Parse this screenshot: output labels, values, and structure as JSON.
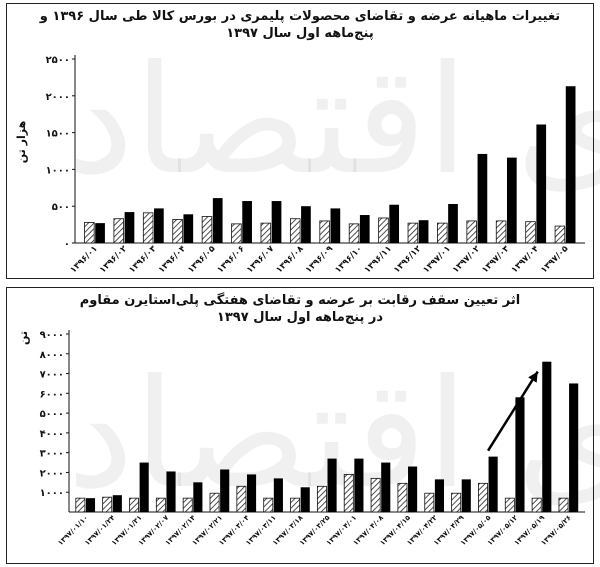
{
  "watermark": "دنیای اقتصاد",
  "chart_data": [
    {
      "type": "bar",
      "title": "تغییرات ماهیانه عرضه و تقاضای محصولات پلیمری در بورس کالا طی سال ۱۳۹۶ و",
      "subtitle": "پنج‌ماهه اول سال ۱۳۹۷",
      "ylabel": "هزار تن",
      "ylim": [
        0,
        2500
      ],
      "yticks": [
        0,
        500,
        1000,
        1500,
        2000,
        2500
      ],
      "ytick_labels": [
        "۰",
        "۵۰۰",
        "۱۰۰۰",
        "۱۵۰۰",
        "۲۰۰۰",
        "۲۵۰۰"
      ],
      "categories": [
        "۱۳۹۶/۰۱",
        "۱۳۹۶/۰۲",
        "۱۳۹۶/۰۳",
        "۱۳۹۶/۰۴",
        "۱۳۹۶/۰۵",
        "۱۳۹۶/۰۶",
        "۱۳۹۶/۰۷",
        "۱۳۹۶/۰۸",
        "۱۳۹۶/۰۹",
        "۱۳۹۶/۱۰",
        "۱۳۹۶/۱۱",
        "۱۳۹۶/۱۲",
        "۱۳۹۷/۰۱",
        "۱۳۹۷/۰۲",
        "۱۳۹۷/۰۳",
        "۱۳۹۷/۰۴",
        "۱۳۹۷/۰۵"
      ],
      "series": [
        {
          "values": [
            280,
            330,
            410,
            320,
            360,
            260,
            270,
            330,
            300,
            260,
            340,
            270,
            270,
            300,
            300,
            290,
            230
          ]
        },
        {
          "values": [
            270,
            420,
            470,
            390,
            610,
            570,
            570,
            500,
            470,
            380,
            520,
            310,
            530,
            1210,
            1160,
            1610,
            2130
          ]
        }
      ]
    },
    {
      "type": "bar",
      "title": "اثر تعیین سقف رقابت بر عرضه و تقاضای هفتگی پلی‌استایرن مقاوم",
      "subtitle": "در پنج‌ماهه اول سال ۱۳۹۷",
      "ylabel": "تن",
      "ylim": [
        0,
        9000
      ],
      "yticks": [
        1000,
        2000,
        3000,
        4000,
        5000,
        6000,
        7000,
        8000,
        9000
      ],
      "ytick_labels": [
        "۱۰۰۰",
        "۲۰۰۰",
        "۳۰۰۰",
        "۴۰۰۰",
        "۵۰۰۰",
        "۶۰۰۰",
        "۷۰۰۰",
        "۸۰۰۰",
        "۹۰۰۰"
      ],
      "categories": [
        "۱۳۹۷/۰۱/۱۰",
        "۱۳۹۷/۰۱/۲۴",
        "۱۳۹۷/۰۱/۳۱",
        "۱۳۹۷/۰۲/۰۷",
        "۱۳۹۷/۰۲/۱۴",
        "۱۳۹۷/۰۲/۲۱",
        "۱۳۹۷/۰۳/۰۴",
        "۱۳۹۷/۰۳/۱۱",
        "۱۳۹۷/۰۳/۱۸",
        "۱۳۹۷/۰۳/۲۵",
        "۱۳۹۷/۰۴/۰۱",
        "۱۳۹۷/۰۴/۰۸",
        "۱۳۹۷/۰۴/۱۵",
        "۱۳۹۷/۰۴/۲۲",
        "۱۳۹۷/۰۴/۲۹",
        "۱۳۹۷/۰۵/۰۵",
        "۱۳۹۷/۰۵/۱۲",
        "۱۳۹۷/۰۵/۱۹",
        "۱۳۹۷/۰۵/۲۶"
      ],
      "series": [
        {
          "values": [
            700,
            750,
            700,
            700,
            700,
            950,
            1300,
            700,
            700,
            1300,
            1900,
            1700,
            1450,
            950,
            950,
            1450,
            700,
            700,
            700
          ]
        },
        {
          "values": [
            700,
            850,
            2500,
            2050,
            1500,
            2150,
            1900,
            1700,
            1250,
            2700,
            2700,
            2500,
            2300,
            1650,
            1650,
            2800,
            5800,
            7600,
            6500
          ]
        }
      ],
      "arrow": {
        "from": {
          "x": "۱۳۹۷/۰۵/۰۵",
          "y": 3100
        },
        "to": {
          "x": "۱۳۹۷/۰۵/۱۹",
          "y": 7100
        }
      }
    }
  ]
}
